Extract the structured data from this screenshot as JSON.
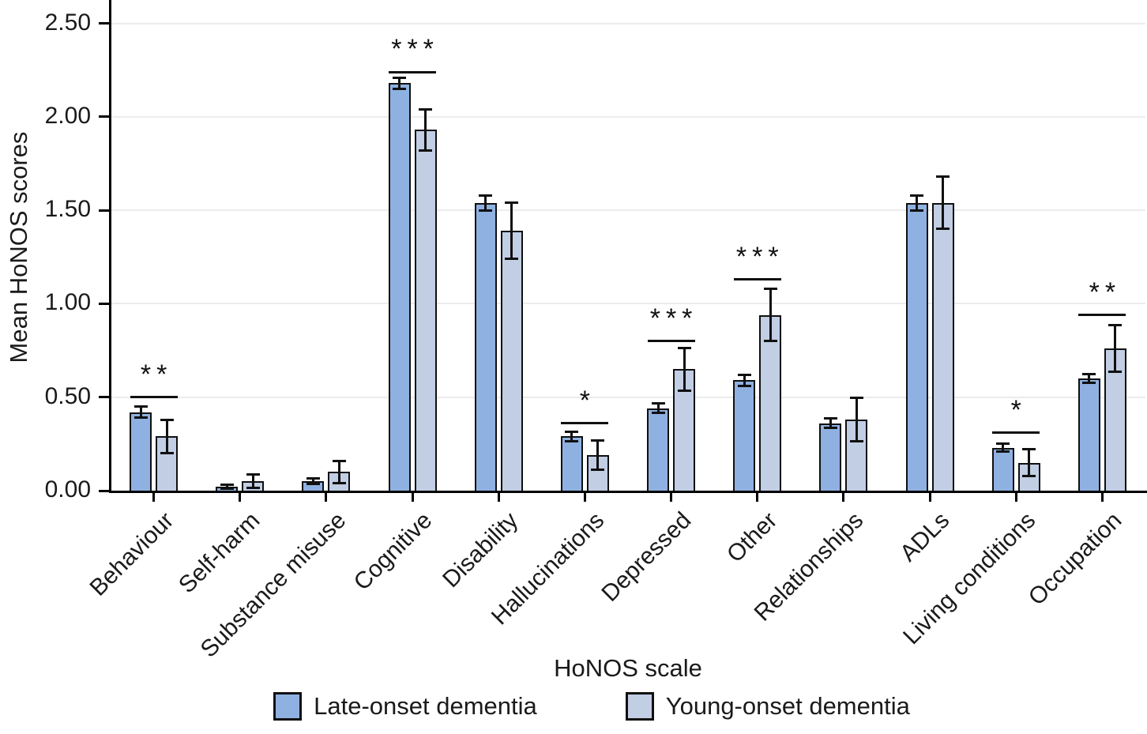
{
  "figure": {
    "background": "#ffffff"
  },
  "chart_data": {
    "type": "bar",
    "title": "",
    "xlabel": "HoNOS scale",
    "ylabel": "Mean HoNOS scores",
    "ylim": [
      0,
      2.625
    ],
    "yticks": [
      "0.00",
      "0.50",
      "1.00",
      "1.50",
      "2.00",
      "2.50"
    ],
    "ytick_values": [
      0,
      0.5,
      1.0,
      1.5,
      2.0,
      2.5
    ],
    "grid": "horizontal",
    "legend_position": "bottom",
    "categories": [
      "Behaviour",
      "Self-harm",
      "Substance misuse",
      "Cognitive",
      "Disability",
      "Hallucinations",
      "Depressed",
      "Other",
      "Relationships",
      "ADLs",
      "Living conditions",
      "Occupation"
    ],
    "series": [
      {
        "name": "Late-onset dementia",
        "color": "#8FB1E1",
        "values": [
          0.42,
          0.02,
          0.05,
          2.18,
          1.54,
          0.29,
          0.44,
          0.59,
          0.36,
          1.54,
          0.23,
          0.6
        ],
        "errors": [
          0.03,
          0.01,
          0.015,
          0.03,
          0.04,
          0.025,
          0.025,
          0.03,
          0.025,
          0.04,
          0.02,
          0.025
        ]
      },
      {
        "name": "Young-onset dementia",
        "color": "#C1CEE4",
        "values": [
          0.29,
          0.05,
          0.1,
          1.93,
          1.39,
          0.19,
          0.65,
          0.94,
          0.38,
          1.54,
          0.15,
          0.76
        ],
        "errors": [
          0.09,
          0.035,
          0.06,
          0.11,
          0.15,
          0.08,
          0.115,
          0.14,
          0.115,
          0.14,
          0.07,
          0.125
        ]
      }
    ],
    "significance": [
      {
        "category": "Behaviour",
        "label": "**",
        "line_y": 0.5
      },
      {
        "category": "Cognitive",
        "label": "***",
        "line_y": 2.24
      },
      {
        "category": "Hallucinations",
        "label": "*",
        "line_y": 0.36
      },
      {
        "category": "Depressed",
        "label": "***",
        "line_y": 0.8
      },
      {
        "category": "Other",
        "label": "***",
        "line_y": 1.13
      },
      {
        "category": "Living conditions",
        "label": "*",
        "line_y": 0.31
      },
      {
        "category": "Occupation",
        "label": "**",
        "line_y": 0.94
      }
    ],
    "colors": {
      "axis": "#000000",
      "grid": "#ececec",
      "bar_border": "#101010",
      "error_bar": "#101010",
      "text": "#1a1a1a"
    }
  }
}
